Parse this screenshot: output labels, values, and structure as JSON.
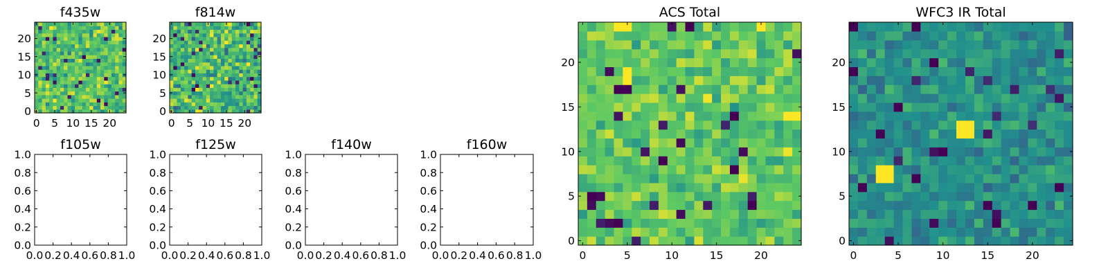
{
  "chart_data": [
    {
      "id": "f435w",
      "type": "heatmap",
      "title": "f435w",
      "colormap": "viridis",
      "grid_size": 25,
      "xlim": [
        -0.5,
        24.5
      ],
      "ylim": [
        -0.5,
        24.5
      ],
      "x_ticks": [
        "0",
        "5",
        "10",
        "15",
        "20"
      ],
      "y_ticks": [
        "0",
        "5",
        "10",
        "15",
        "20"
      ],
      "value_range": [
        0,
        1
      ],
      "note_values": "pixel values not printed; colors range across viridis"
    },
    {
      "id": "f814w",
      "type": "heatmap",
      "title": "f814w",
      "colormap": "viridis",
      "grid_size": 25,
      "xlim": [
        -0.5,
        24.5
      ],
      "ylim": [
        -0.5,
        24.5
      ],
      "x_ticks": [
        "0",
        "5",
        "10",
        "15",
        "20"
      ],
      "y_ticks": [
        "0",
        "5",
        "10",
        "15",
        "20"
      ],
      "value_range": [
        0,
        1
      ]
    },
    {
      "id": "f105w",
      "type": "empty",
      "title": "f105w",
      "xlim": [
        0,
        1
      ],
      "ylim": [
        0,
        1
      ],
      "x_ticks": [
        "0.0",
        "0.2",
        "0.4",
        "0.6",
        "0.8",
        "1.0"
      ],
      "y_ticks": [
        "0.0",
        "0.2",
        "0.4",
        "0.6",
        "0.8",
        "1.0"
      ]
    },
    {
      "id": "f125w",
      "type": "empty",
      "title": "f125w",
      "xlim": [
        0,
        1
      ],
      "ylim": [
        0,
        1
      ],
      "x_ticks": [
        "0.0",
        "0.2",
        "0.4",
        "0.6",
        "0.8",
        "1.0"
      ],
      "y_ticks": [
        "0.0",
        "0.2",
        "0.4",
        "0.6",
        "0.8",
        "1.0"
      ]
    },
    {
      "id": "f140w",
      "type": "empty",
      "title": "f140w",
      "xlim": [
        0,
        1
      ],
      "ylim": [
        0,
        1
      ],
      "x_ticks": [
        "0.0",
        "0.2",
        "0.4",
        "0.6",
        "0.8",
        "1.0"
      ],
      "y_ticks": [
        "0.0",
        "0.2",
        "0.4",
        "0.6",
        "0.8",
        "1.0"
      ]
    },
    {
      "id": "f160w",
      "type": "empty",
      "title": "f160w",
      "xlim": [
        0,
        1
      ],
      "ylim": [
        0,
        1
      ],
      "x_ticks": [
        "0.0",
        "0.2",
        "0.4",
        "0.6",
        "0.8",
        "1.0"
      ],
      "y_ticks": [
        "0.0",
        "0.2",
        "0.4",
        "0.6",
        "0.8",
        "1.0"
      ]
    },
    {
      "id": "acs_total",
      "type": "heatmap",
      "title": "ACS Total",
      "colormap": "viridis",
      "grid_size": 25,
      "xlim": [
        -0.5,
        24.5
      ],
      "ylim": [
        -0.5,
        24.5
      ],
      "x_ticks": [
        "0",
        "5",
        "10",
        "15",
        "20"
      ],
      "y_ticks": [
        "0",
        "5",
        "10",
        "15",
        "20"
      ],
      "value_range": [
        0,
        1
      ],
      "highlights": [
        {
          "x": 5,
          "y": 17,
          "value": 0.0
        },
        {
          "x": 4,
          "y": 17,
          "value": 0.0
        },
        {
          "x": 12,
          "y": 24,
          "value": 0.0
        },
        {
          "x": 17,
          "y": 14,
          "value": 0.0
        },
        {
          "x": 9,
          "y": 9,
          "value": 0.0
        },
        {
          "x": 17,
          "y": 8,
          "value": 0.0
        },
        {
          "x": 1,
          "y": 5,
          "value": 0.0
        },
        {
          "x": 19,
          "y": 4,
          "value": 0.0
        },
        {
          "x": 5,
          "y": 19,
          "value": 1.0
        },
        {
          "x": 5,
          "y": 18,
          "value": 1.0
        },
        {
          "x": 4,
          "y": 24,
          "value": 1.0
        },
        {
          "x": 5,
          "y": 24,
          "value": 1.0
        },
        {
          "x": 20,
          "y": 24,
          "value": 1.0
        },
        {
          "x": 24,
          "y": 14,
          "value": 1.0
        },
        {
          "x": 23,
          "y": 14,
          "value": 1.0
        }
      ]
    },
    {
      "id": "wfc3_ir_total",
      "type": "heatmap",
      "title": "WFC3 IR Total",
      "colormap": "viridis",
      "grid_size": 25,
      "xlim": [
        -0.5,
        24.5
      ],
      "ylim": [
        -0.5,
        24.5
      ],
      "x_ticks": [
        "0",
        "5",
        "10",
        "15",
        "20"
      ],
      "y_ticks": [
        "0",
        "5",
        "10",
        "15",
        "20"
      ],
      "value_range": [
        0,
        1
      ],
      "highlights": [
        {
          "x": 12,
          "y": 13,
          "value": 1.0
        },
        {
          "x": 13,
          "y": 13,
          "value": 1.0
        },
        {
          "x": 12,
          "y": 12,
          "value": 1.0
        },
        {
          "x": 13,
          "y": 12,
          "value": 1.0
        },
        {
          "x": 3,
          "y": 7,
          "value": 1.0
        },
        {
          "x": 4,
          "y": 7,
          "value": 1.0
        },
        {
          "x": 3,
          "y": 8,
          "value": 1.0
        },
        {
          "x": 4,
          "y": 8,
          "value": 1.0
        },
        {
          "x": 0,
          "y": 24,
          "value": 0.0
        },
        {
          "x": 7,
          "y": 24,
          "value": 0.0
        },
        {
          "x": 9,
          "y": 20,
          "value": 0.0
        },
        {
          "x": 0,
          "y": 19,
          "value": 0.0
        },
        {
          "x": 3,
          "y": 12,
          "value": 0.0
        },
        {
          "x": 10,
          "y": 10,
          "value": 0.0
        },
        {
          "x": 1,
          "y": 6,
          "value": 0.0
        },
        {
          "x": 7,
          "y": 7,
          "value": 0.0
        },
        {
          "x": 15,
          "y": 4,
          "value": 0.0
        },
        {
          "x": 20,
          "y": 4,
          "value": 0.0
        },
        {
          "x": 23,
          "y": 6,
          "value": 0.0
        },
        {
          "x": 5,
          "y": 15,
          "value": 0.0
        }
      ]
    }
  ],
  "colors": {
    "viridis": [
      "#440154",
      "#3b528b",
      "#21908d",
      "#5dc963",
      "#fde725"
    ],
    "axes": "#000000",
    "background": "#ffffff"
  }
}
